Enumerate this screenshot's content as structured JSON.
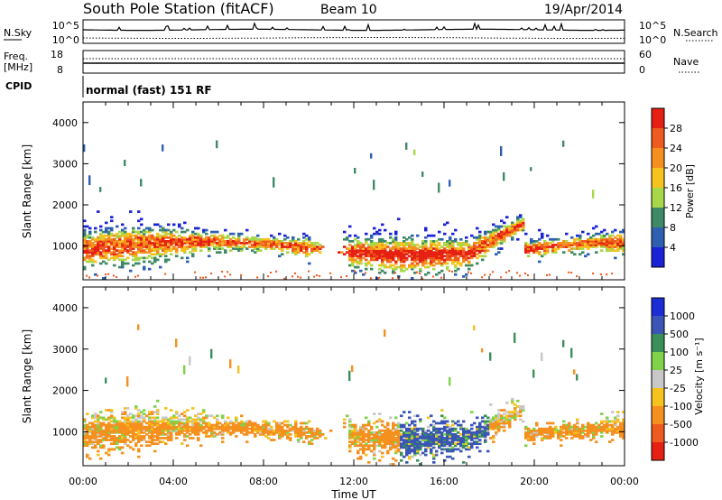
{
  "header": {
    "title": "South Pole Station (fitACF)",
    "beam": "Beam 10",
    "date": "19/Apr/2014"
  },
  "noise_panel": {
    "left_label": "N.Sky",
    "right_label": "N.Search",
    "left_ticks": [
      "10^5",
      "10^0"
    ],
    "right_ticks": [
      "10^5",
      "10^0"
    ]
  },
  "freq_panel": {
    "left_label_1": "Freq.",
    "left_label_2": "[MHz]",
    "right_label": "Nave",
    "left_ticks": [
      "18",
      "8"
    ],
    "right_ticks": [
      "60",
      "0"
    ]
  },
  "cpid": {
    "label": "CPID",
    "mode": "normal (fast) 151 RF"
  },
  "chart_data": [
    {
      "type": "heatmap",
      "parameter": "power",
      "ylabel": "Slant Range [km]",
      "xlabel": "",
      "y_ticks": [
        "1000",
        "2000",
        "3000",
        "4000"
      ],
      "yticks_values": [
        1000,
        2000,
        3000,
        4000
      ],
      "ylim": [
        180,
        4500
      ],
      "xlim_hours": [
        0,
        24
      ],
      "colorbar_label": "Power [dB]",
      "colorbar_ticks": [
        "4",
        "8",
        "12",
        "16",
        "20",
        "24",
        "28"
      ],
      "colorbar_colors": [
        "#1b22d6",
        "#2f5fb0",
        "#3f8a66",
        "#a8d84a",
        "#f5c21e",
        "#f5901e",
        "#ef5a1e",
        "#e62012"
      ],
      "colorbar_range": [
        0,
        30
      ],
      "dominant_echo_band_km": [
        600,
        1400
      ]
    },
    {
      "type": "heatmap",
      "parameter": "velocity",
      "ylabel": "Slant Range [km]",
      "xlabel": "Time UT",
      "y_ticks": [
        "1000",
        "2000",
        "3000",
        "4000"
      ],
      "yticks_values": [
        1000,
        2000,
        3000,
        4000
      ],
      "ylim": [
        180,
        4500
      ],
      "xlim_hours": [
        0,
        24
      ],
      "colorbar_label": "Velocity [m s⁻¹]",
      "colorbar_ticks": [
        "1000",
        "500",
        "100",
        "25",
        "-25",
        "-100",
        "-500",
        "-1000"
      ],
      "colorbar_colors": [
        "#1b2ed6",
        "#3a55b5",
        "#3c8f5a",
        "#7fd24a",
        "#c8c8c8",
        "#f5c21e",
        "#f5901e",
        "#ef5a1e",
        "#e62012"
      ],
      "dominant_echo_band_km": [
        600,
        2000
      ]
    }
  ],
  "x_axis": {
    "tick_labels": [
      "00:00",
      "04:00",
      "08:00",
      "12:00",
      "16:00",
      "20:00",
      "00:00"
    ],
    "label": "Time UT"
  }
}
